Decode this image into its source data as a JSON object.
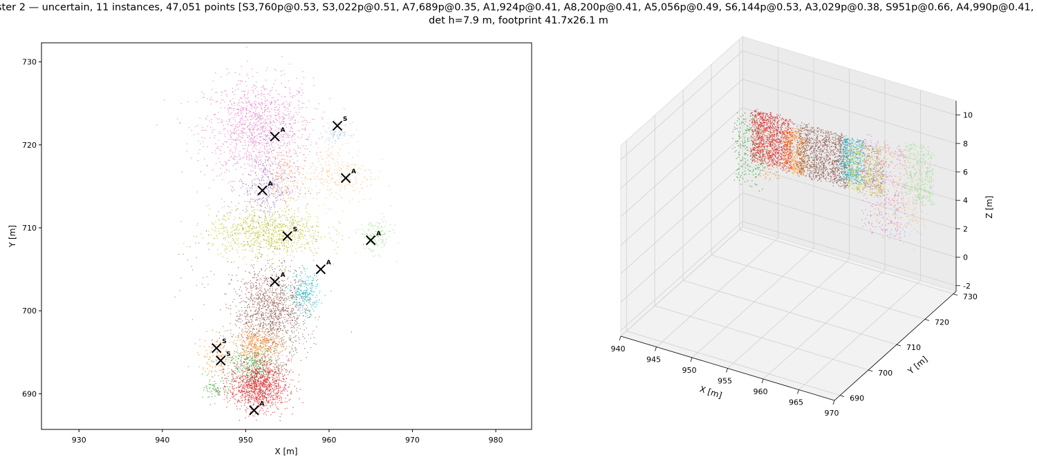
{
  "title": {
    "line1": "ster 2 — uncertain, 11 instances, 47,051 points [S3,760p@0.53, S3,022p@0.51, A7,689p@0.35, A1,924p@0.41, A8,200p@0.41, A5,056p@0.49, S6,144p@0.53, A3,029p@0.38, S951p@0.66, A4,990p@0.41, A",
    "line2": "det h=7.9 m, footprint 41.7x26.1 m"
  },
  "chart_data": [
    {
      "type": "scatter",
      "xlabel": "X [m]",
      "ylabel": "Y [m]",
      "xlim": [
        925.5,
        984.3
      ],
      "ylim": [
        685.7,
        732.3
      ],
      "xticks": [
        930,
        940,
        950,
        960,
        970,
        980
      ],
      "yticks": [
        690,
        700,
        710,
        720,
        730
      ],
      "grid": false,
      "clusters": [
        {
          "color": "#e377c2",
          "cx": 951.5,
          "cy": 722.0,
          "rx": 6.5,
          "ry": 6.0,
          "n": 1300
        },
        {
          "color": "#9467bd",
          "cx": 952.5,
          "cy": 715.0,
          "rx": 3.5,
          "ry": 4.0,
          "n": 350
        },
        {
          "color": "#ffbb78",
          "cx": 961.0,
          "cy": 716.5,
          "rx": 4.5,
          "ry": 3.5,
          "n": 260
        },
        {
          "color": "#ffbb78",
          "cx": 954.5,
          "cy": 716.0,
          "rx": 2.5,
          "ry": 3.5,
          "n": 200
        },
        {
          "color": "#bcbd22",
          "cx": 952.5,
          "cy": 709.5,
          "rx": 7.0,
          "ry": 3.0,
          "n": 900
        },
        {
          "color": "#aec7e8",
          "cx": 961.0,
          "cy": 721.5,
          "rx": 1.5,
          "ry": 1.2,
          "n": 100
        },
        {
          "color": "#98df8a",
          "cx": 965.5,
          "cy": 709.0,
          "rx": 2.0,
          "ry": 2.0,
          "n": 160
        },
        {
          "color": "#8c564b",
          "cx": 953.0,
          "cy": 700.0,
          "rx": 4.5,
          "ry": 5.5,
          "n": 1300
        },
        {
          "color": "#17becf",
          "cx": 957.0,
          "cy": 702.0,
          "rx": 1.8,
          "ry": 2.5,
          "n": 260
        },
        {
          "color": "#ff7f0e",
          "cx": 951.5,
          "cy": 696.0,
          "rx": 3.0,
          "ry": 1.8,
          "n": 350
        },
        {
          "color": "#ff7f0e",
          "cx": 946.5,
          "cy": 694.5,
          "rx": 2.2,
          "ry": 2.5,
          "n": 120
        },
        {
          "color": "#2ca02c",
          "cx": 950.5,
          "cy": 693.5,
          "rx": 3.0,
          "ry": 2.0,
          "n": 300
        },
        {
          "color": "#2ca02c",
          "cx": 946.5,
          "cy": 690.5,
          "rx": 1.5,
          "ry": 1.2,
          "n": 70
        },
        {
          "color": "#d62728",
          "cx": 951.5,
          "cy": 691.0,
          "rx": 3.5,
          "ry": 3.0,
          "n": 1200
        },
        {
          "color": "#7f7f7f",
          "cx": 944.0,
          "cy": 705.0,
          "rx": 2.5,
          "ry": 5.0,
          "n": 25
        }
      ],
      "markers": [
        {
          "x": 953.5,
          "y": 721.0,
          "label": "A"
        },
        {
          "x": 961.0,
          "y": 722.3,
          "label": "S"
        },
        {
          "x": 952.0,
          "y": 714.5,
          "label": "A"
        },
        {
          "x": 962.0,
          "y": 716.0,
          "label": "A"
        },
        {
          "x": 955.0,
          "y": 709.0,
          "label": "S"
        },
        {
          "x": 965.0,
          "y": 708.5,
          "label": "A"
        },
        {
          "x": 959.0,
          "y": 705.0,
          "label": "A"
        },
        {
          "x": 953.5,
          "y": 703.5,
          "label": "A"
        },
        {
          "x": 946.5,
          "y": 695.5,
          "label": "S"
        },
        {
          "x": 947.0,
          "y": 694.0,
          "label": "S"
        },
        {
          "x": 951.0,
          "y": 688.0,
          "label": "A"
        }
      ]
    },
    {
      "type": "scatter3d",
      "xlabel": "X [m]",
      "ylabel": "Y [m]",
      "zlabel": "Z [m]",
      "xticks": [
        940,
        945,
        950,
        955,
        960,
        965,
        970
      ],
      "yticks": [
        690,
        700,
        710,
        720,
        730
      ],
      "zticks": [
        -2,
        0,
        2,
        4,
        6,
        8,
        10
      ],
      "grid": true,
      "bands": [
        {
          "color": "#ff7f0e",
          "x0": 945,
          "x1": 949,
          "z0": 3.5,
          "z1": 7.0,
          "n": 120
        },
        {
          "color": "#2ca02c",
          "x0": 942,
          "x1": 946,
          "z0": 2.5,
          "z1": 7.5,
          "n": 220
        },
        {
          "color": "#d62728",
          "x0": 944.5,
          "x1": 950,
          "z0": 4.5,
          "z1": 8.0,
          "n": 1100
        },
        {
          "color": "#ff7f0e",
          "x0": 949,
          "x1": 952,
          "z0": 4.5,
          "z1": 7.5,
          "n": 400
        },
        {
          "color": "#8c564b",
          "x0": 951,
          "x1": 958,
          "z0": 4.5,
          "z1": 8.0,
          "n": 1100
        },
        {
          "color": "#17becf",
          "x0": 957,
          "x1": 960,
          "z0": 5.0,
          "z1": 8.0,
          "n": 400
        },
        {
          "color": "#bcbd22",
          "x0": 958,
          "x1": 963,
          "z0": 4.5,
          "z1": 8.0,
          "n": 450
        },
        {
          "color": "#e377c2",
          "x0": 960,
          "x1": 966,
          "z0": 2.0,
          "z1": 8.5,
          "n": 350
        },
        {
          "color": "#ffbb78",
          "x0": 962,
          "x1": 969,
          "z0": 3.0,
          "z1": 8.5,
          "n": 250
        },
        {
          "color": "#98df8a",
          "x0": 966,
          "x1": 970,
          "z0": 5.0,
          "z1": 9.0,
          "n": 350
        },
        {
          "color": "#aec7e8",
          "x0": 964,
          "x1": 968,
          "z0": 1.5,
          "z1": 6.0,
          "n": 50
        },
        {
          "color": "#9467bd",
          "x0": 959,
          "x1": 963,
          "z0": 5.0,
          "z1": 8.0,
          "n": 120
        }
      ]
    }
  ]
}
